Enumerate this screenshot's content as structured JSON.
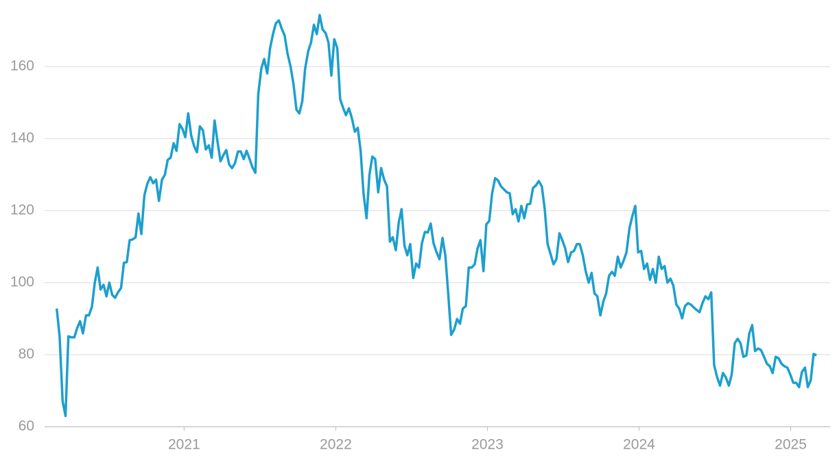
{
  "chart_data": {
    "type": "line",
    "x": [
      2020.16,
      2020.179,
      2020.199,
      2020.218,
      2020.237,
      2020.256,
      2020.276,
      2020.295,
      2020.314,
      2020.333,
      2020.353,
      2020.372,
      2020.392,
      2020.411,
      2020.43,
      2020.449,
      2020.469,
      2020.488,
      2020.507,
      2020.526,
      2020.545,
      2020.564,
      2020.584,
      2020.603,
      2020.622,
      2020.641,
      2020.661,
      2020.68,
      2020.699,
      2020.718,
      2020.738,
      2020.757,
      2020.777,
      2020.796,
      2020.815,
      2020.834,
      2020.854,
      2020.873,
      2020.892,
      2020.911,
      2020.931,
      2020.95,
      2020.97,
      2020.989,
      2021.008,
      2021.027,
      2021.047,
      2021.066,
      2021.085,
      2021.104,
      2021.124,
      2021.143,
      2021.163,
      2021.182,
      2021.201,
      2021.22,
      2021.24,
      2021.259,
      2021.278,
      2021.297,
      2021.316,
      2021.335,
      2021.355,
      2021.374,
      2021.393,
      2021.412,
      2021.432,
      2021.451,
      2021.47,
      2021.489,
      2021.509,
      2021.528,
      2021.548,
      2021.567,
      2021.586,
      2021.605,
      2021.625,
      2021.644,
      2021.663,
      2021.682,
      2021.702,
      2021.721,
      2021.741,
      2021.76,
      2021.779,
      2021.798,
      2021.818,
      2021.837,
      2021.856,
      2021.875,
      2021.894,
      2021.913,
      2021.933,
      2021.952,
      2021.971,
      2021.99,
      2022.01,
      2022.029,
      2022.048,
      2022.067,
      2022.087,
      2022.106,
      2022.126,
      2022.145,
      2022.164,
      2022.183,
      2022.203,
      2022.222,
      2022.241,
      2022.26,
      2022.28,
      2022.299,
      2022.319,
      2022.338,
      2022.357,
      2022.376,
      2022.396,
      2022.415,
      2022.434,
      2022.453,
      2022.472,
      2022.491,
      2022.511,
      2022.53,
      2022.549,
      2022.568,
      2022.588,
      2022.607,
      2022.626,
      2022.645,
      2022.665,
      2022.684,
      2022.704,
      2022.723,
      2022.742,
      2022.761,
      2022.781,
      2022.8,
      2022.819,
      2022.838,
      2022.858,
      2022.877,
      2022.897,
      2022.916,
      2022.935,
      2022.954,
      2022.974,
      2022.993,
      2023.012,
      2023.031,
      2023.051,
      2023.07,
      2023.09,
      2023.109,
      2023.128,
      2023.147,
      2023.167,
      2023.186,
      2023.205,
      2023.224,
      2023.243,
      2023.262,
      2023.282,
      2023.301,
      2023.32,
      2023.339,
      2023.359,
      2023.378,
      2023.397,
      2023.416,
      2023.436,
      2023.455,
      2023.475,
      2023.494,
      2023.513,
      2023.532,
      2023.552,
      2023.571,
      2023.59,
      2023.609,
      2023.629,
      2023.648,
      2023.668,
      2023.687,
      2023.706,
      2023.725,
      2023.745,
      2023.764,
      2023.783,
      2023.802,
      2023.821,
      2023.84,
      2023.86,
      2023.879,
      2023.898,
      2023.917,
      2023.937,
      2023.956,
      2023.975,
      2023.994,
      2024.014,
      2024.033,
      2024.053,
      2024.072,
      2024.091,
      2024.11,
      2024.13,
      2024.149,
      2024.168,
      2024.187,
      2024.207,
      2024.226,
      2024.246,
      2024.265,
      2024.284,
      2024.303,
      2024.323,
      2024.342,
      2024.361,
      2024.38,
      2024.399,
      2024.418,
      2024.438,
      2024.457,
      2024.476,
      2024.495,
      2024.515,
      2024.534,
      2024.553,
      2024.572,
      2024.592,
      2024.611,
      2024.631,
      2024.65,
      2024.669,
      2024.688,
      2024.708,
      2024.727,
      2024.746,
      2024.765,
      2024.785,
      2024.804,
      2024.824,
      2024.843,
      2024.862,
      2024.881,
      2024.901,
      2024.92,
      2024.939,
      2024.958,
      2024.978,
      2024.997,
      2025.017,
      2025.036,
      2025.055,
      2025.074,
      2025.094,
      2025.113,
      2025.132,
      2025.151,
      2025.17
    ],
    "series": [
      {
        "color": "#1d9fcd",
        "values": [
          92.8,
          85.1,
          67,
          63,
          85.1,
          84.8,
          84.8,
          87.4,
          89.3,
          85.9,
          90.9,
          90.9,
          93.3,
          100,
          104.2,
          98.1,
          99.4,
          96.2,
          100,
          96.6,
          95.8,
          97.3,
          98.5,
          105.5,
          105.7,
          111.8,
          112,
          112.6,
          119.2,
          113.5,
          124.2,
          127.4,
          129.3,
          127.6,
          128.6,
          122.7,
          128.6,
          129.9,
          134.1,
          134.7,
          138.7,
          136.6,
          144,
          142.7,
          140.4,
          147,
          140.8,
          137.9,
          136.2,
          143.4,
          142.3,
          137,
          138.1,
          134.7,
          145,
          139.2,
          133.7,
          135.4,
          136.8,
          132.8,
          131.8,
          133.1,
          136.4,
          136.4,
          134.3,
          136.6,
          134.3,
          132,
          130.5,
          152.4,
          159.4,
          162.1,
          158.1,
          165.1,
          169,
          172,
          172.8,
          170.5,
          168.6,
          163.6,
          160,
          155.2,
          148,
          147,
          150.3,
          159.4,
          164.2,
          166.7,
          171.6,
          169,
          174.3,
          170.3,
          169.3,
          166.7,
          157.5,
          167.6,
          165.1,
          150.9,
          148.6,
          146.5,
          148.4,
          145.7,
          141.9,
          143,
          136.6,
          124.8,
          117.9,
          129.9,
          135,
          134.3,
          125.1,
          131.8,
          128.6,
          126.7,
          111.4,
          112.6,
          109,
          116.6,
          120.4,
          110.3,
          107.6,
          110.7,
          101.3,
          105.3,
          104.2,
          110.9,
          114.1,
          113.9,
          116.4,
          110.9,
          108.4,
          106.5,
          112.4,
          107.4,
          96.6,
          85.5,
          87,
          89.9,
          88.6,
          92.8,
          93.5,
          104.2,
          104.2,
          105.1,
          109.5,
          111.8,
          103.2,
          116.2,
          117.1,
          124.8,
          129,
          128.4,
          126.7,
          125.9,
          125.1,
          124.8,
          119,
          120.4,
          117,
          121.3,
          117.9,
          121.7,
          121.9,
          126.3,
          127,
          128.2,
          126.7,
          120.4,
          110.7,
          108,
          105.1,
          106.5,
          113.7,
          111.8,
          109.5,
          105.7,
          108.4,
          108.8,
          110.7,
          110.7,
          107.6,
          103.2,
          100,
          102.7,
          97,
          96.2,
          90.9,
          94.7,
          97,
          101.9,
          103,
          101.9,
          107.2,
          104.2,
          106.1,
          108.4,
          115.2,
          118.5,
          121.3,
          108.4,
          108.8,
          103.8,
          105.3,
          100.8,
          103.8,
          100,
          107.2,
          103.8,
          104.6,
          100,
          101.1,
          99.2,
          93.9,
          92.8,
          90.1,
          93.5,
          94.3,
          93.9,
          93.1,
          92.4,
          91.8,
          94.3,
          96.2,
          95.4,
          97.3,
          77.1,
          73.7,
          71.4,
          74.9,
          73.7,
          71.4,
          74.5,
          83.2,
          84.4,
          83.2,
          79.4,
          79.8,
          85.9,
          88.2,
          81,
          81.7,
          81.3,
          79.4,
          77.5,
          76.8,
          74.9,
          79.4,
          79,
          77.5,
          76.8,
          76.4,
          74.5,
          72.2,
          72.2,
          71,
          75.2,
          76.4,
          71,
          72.9,
          80.2,
          79.8
        ]
      }
    ],
    "xlim": [
      2020.08,
      2025.26
    ],
    "xticks": [
      2021,
      2022,
      2023,
      2024,
      2025
    ],
    "ylim": [
      60,
      176
    ],
    "yticks": [
      60,
      80,
      100,
      120,
      140,
      160
    ],
    "grid": true
  }
}
